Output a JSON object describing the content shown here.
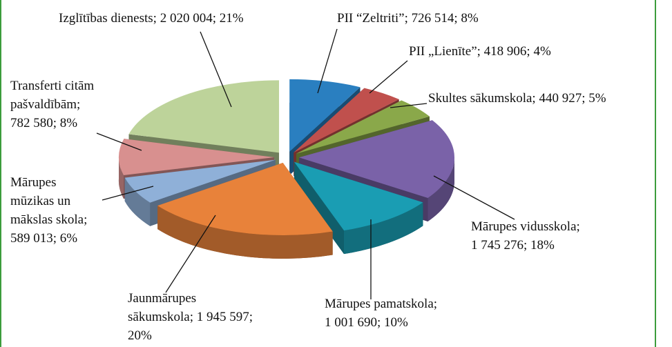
{
  "chart_data": {
    "type": "pie3d",
    "categories": [
      "PII “Zeltriti”",
      "PII „Lienīte”",
      "Skultes sākumskola",
      "Mārupes vidusskola",
      "Mārupes pamatskola",
      "Jaunmārupes sākumskola",
      "Mārupes mūzikas un mākslas skola",
      "Transferti citām pašvaldībām",
      "Izglītības dienests"
    ],
    "values": [
      726514,
      418906,
      440927,
      1745276,
      1001690,
      1945597,
      589013,
      782580,
      2020004
    ],
    "labels": [
      [
        "PII “Zeltriti”; 726 514; 8%"
      ],
      [
        "PII „Lienīte”; 418 906; 4%"
      ],
      [
        "Skultes sākumskola; 440 927; 5%"
      ],
      [
        "Mārupes vidusskola;",
        "1 745 276; 18%"
      ],
      [
        "Mārupes pamatskola;",
        "1 001 690; 10%"
      ],
      [
        "Jaunmārupes",
        "sākumskola; 1 945 597;",
        "20%"
      ],
      [
        "Mārupes",
        "mūzikas un",
        "mākslas skola;",
        "589 013; 6%"
      ],
      [
        "Transferti citām",
        "pašvaldībām;",
        "782 580; 8%"
      ],
      [
        "Izglītības dienests; 2 020 004; 21%"
      ]
    ],
    "colors": [
      "#2a7fc0",
      "#c0504d",
      "#8aa84a",
      "#7a62a8",
      "#1a9db3",
      "#e8823a",
      "#8fb0d8",
      "#d8908f",
      "#bdd39a"
    ]
  }
}
